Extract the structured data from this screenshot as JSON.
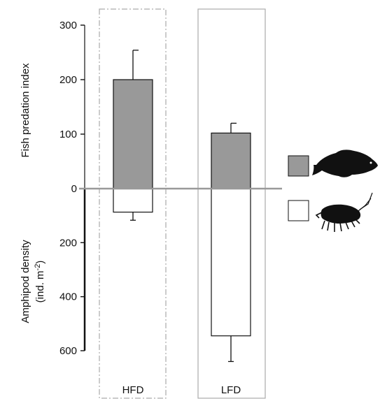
{
  "chart_data": {
    "type": "bar",
    "categories": [
      "HFD",
      "LFD"
    ],
    "upper_axis": {
      "ylabel": "Fish predation index",
      "ticks": [
        0,
        100,
        200,
        300
      ],
      "ylim": [
        0,
        300
      ]
    },
    "lower_axis": {
      "ylabel_line1": "Amphipod density",
      "ylabel_line2_prefix": "(ind. m",
      "ylabel_line2_sup": "-2",
      "ylabel_line2_suffix": ")",
      "ticks": [
        200,
        400,
        600
      ],
      "ylim": [
        0,
        600
      ],
      "direction": "downward"
    },
    "series": [
      {
        "legend_key": "fish",
        "color": "#999999",
        "values": [
          200,
          102
        ],
        "errors": [
          54,
          18
        ]
      },
      {
        "legend_key": "amphipod",
        "color": "#ffffff",
        "values": [
          87,
          545
        ],
        "errors": [
          30,
          95
        ]
      }
    ],
    "legend": {
      "placement": "right",
      "icons": [
        "fish-silhouette-icon",
        "amphipod-silhouette-icon"
      ]
    },
    "group_frames": [
      {
        "category": "HFD",
        "style": "dash-dot",
        "color": "#aaaaaa"
      },
      {
        "category": "LFD",
        "style": "solid",
        "color": "#aaaaaa"
      }
    ],
    "zero_line_color": "#999999"
  }
}
